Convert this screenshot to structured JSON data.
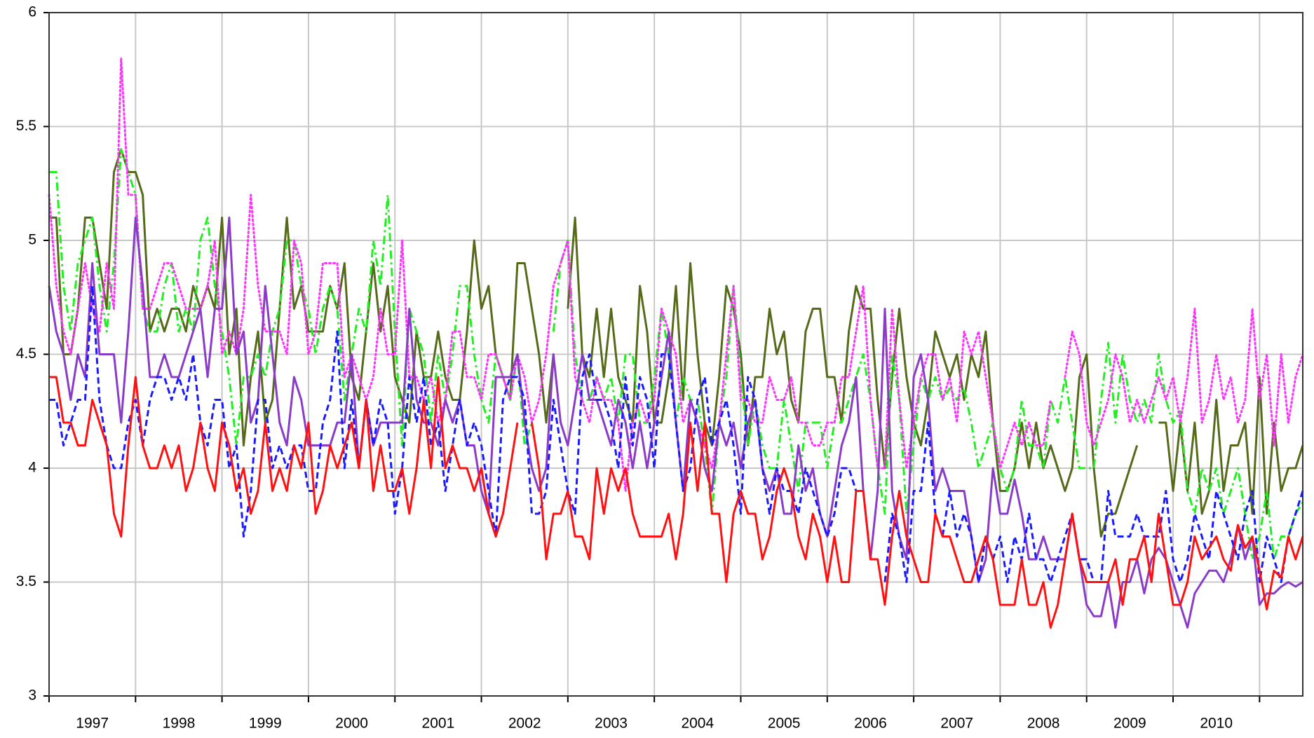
{
  "chart_data": {
    "type": "line",
    "xlim": [
      1997,
      2011.5
    ],
    "xticks": [
      {
        "value": 1997,
        "label": "1997"
      },
      {
        "value": 1998,
        "label": "1998"
      },
      {
        "value": 1999,
        "label": "1999"
      },
      {
        "value": 2000,
        "label": "2000"
      },
      {
        "value": 2001,
        "label": "2001"
      },
      {
        "value": 2002,
        "label": "2002"
      },
      {
        "value": 2003,
        "label": "2003"
      },
      {
        "value": 2004,
        "label": "2004"
      },
      {
        "value": 2005,
        "label": "2005"
      },
      {
        "value": 2006,
        "label": "2006"
      },
      {
        "value": 2007,
        "label": "2007"
      },
      {
        "value": 2008,
        "label": "2008"
      },
      {
        "value": 2009,
        "label": "2009"
      },
      {
        "value": 2010,
        "label": "2010"
      }
    ],
    "ylim": [
      3,
      6
    ],
    "yticks": [
      3,
      3.5,
      4,
      4.5,
      5,
      5.5,
      6
    ],
    "grid": true,
    "series": [
      {
        "color": "#556b1a",
        "style": "solid",
        "values": [
          5.1,
          5.1,
          4.5,
          4.5,
          4.7,
          5.1,
          5.1,
          4.9,
          4.7,
          5.3,
          5.4,
          5.3,
          5.3,
          5.2,
          4.6,
          4.7,
          4.6,
          4.7,
          4.7,
          4.6,
          4.8,
          4.7,
          4.8,
          4.7,
          5.1,
          4.5,
          4.7,
          4.1,
          4.4,
          4.6,
          4.2,
          4.3,
          4.7,
          5.1,
          4.7,
          4.8,
          4.6,
          4.6,
          4.6,
          4.8,
          4.7,
          4.9,
          4.4,
          4.3,
          4.6,
          4.9,
          4.6,
          4.8,
          4.4,
          4.3,
          4.2,
          4.6,
          4.4,
          4.4,
          4.6,
          4.4,
          4.3,
          4.3,
          4.6,
          5.0,
          4.7,
          4.8,
          4.5,
          4.4,
          4.3,
          4.9,
          4.9,
          4.7,
          4.5,
          4.2,
          4.5,
          null,
          4.7,
          5.1,
          4.5,
          4.4,
          4.7,
          4.4,
          4.7,
          4.4,
          4.3,
          4.2,
          4.8,
          4.6,
          4.2,
          4.2,
          4.4,
          4.8,
          4.3,
          4.9,
          4.5,
          4.2,
          4.1,
          4.4,
          4.8,
          4.7,
          4.5,
          4.1,
          4.4,
          4.4,
          4.7,
          4.5,
          4.6,
          4.3,
          4.2,
          4.6,
          4.7,
          4.7,
          4.4,
          4.4,
          4.2,
          4.6,
          4.8,
          4.7,
          4.7,
          4.3,
          4.0,
          4.4,
          4.7,
          4.4,
          4.2,
          4.1,
          4.3,
          4.6,
          4.5,
          4.4,
          4.5,
          4.3,
          4.5,
          4.4,
          4.6,
          4.2,
          3.9,
          3.9,
          4.0,
          4.2,
          4.0,
          4.2,
          4.0,
          4.1,
          4.0,
          3.9,
          4.0,
          4.4,
          4.5,
          4.0,
          3.7,
          3.8,
          3.8,
          3.9,
          4.0,
          4.1,
          null,
          null,
          4.2,
          4.2,
          3.9,
          4.2,
          3.9,
          4.2,
          3.8,
          3.9,
          4.3,
          3.9,
          4.1,
          4.1,
          4.2,
          3.8,
          4.4,
          3.8,
          4.2,
          3.9,
          4.0,
          4.0,
          4.1
        ]
      },
      {
        "color": "#22ee22",
        "style": "dashdot",
        "values": [
          5.3,
          5.3,
          4.8,
          4.6,
          4.9,
          5.0,
          5.1,
          4.8,
          4.6,
          4.9,
          5.4,
          5.3,
          5.2,
          4.7,
          4.6,
          4.6,
          4.8,
          4.9,
          4.6,
          4.7,
          4.6,
          5.0,
          5.1,
          4.8,
          4.6,
          4.4,
          4.1,
          4.4,
          4.4,
          4.5,
          4.4,
          4.6,
          4.7,
          5.0,
          5.0,
          4.8,
          4.7,
          4.5,
          4.7,
          4.8,
          4.7,
          4.3,
          4.5,
          4.7,
          4.6,
          5.0,
          4.8,
          5.2,
          4.6,
          4.1,
          4.7,
          4.6,
          4.5,
          4.2,
          4.5,
          4.3,
          4.5,
          4.8,
          4.8,
          4.5,
          4.3,
          4.2,
          4.5,
          4.4,
          4.3,
          4.5,
          4.1,
          4.2,
          null,
          null,
          4.6,
          4.9,
          5.0,
          4.5,
          4.3,
          4.3,
          4.4,
          4.3,
          4.4,
          4.2,
          4.5,
          4.5,
          4.2,
          4.2,
          4.4,
          4.7,
          4.5,
          4.2,
          4.4,
          4.3,
          4.3,
          4.1,
          3.8,
          4.2,
          4.4,
          4.8,
          4.4,
          4.1,
          4.3,
          4.1,
          4.0,
          4.0,
          4.3,
          4.1,
          3.9,
          4.2,
          4.2,
          4.2,
          4.0,
          4.2,
          4.2,
          4.3,
          4.4,
          4.5,
          4.3,
          4.0,
          3.8,
          4.5,
          4.3,
          3.8,
          4.1,
          4.4,
          4.3,
          4.4,
          4.3,
          4.35,
          4.3,
          4.35,
          4.2,
          4.0,
          4.1,
          4.2,
          4.0,
          3.9,
          4.0,
          4.3,
          4.1,
          4.1,
          4.0,
          4.3,
          4.2,
          4.4,
          4.2,
          4.0,
          4.0,
          4.0,
          4.3,
          4.55,
          4.2,
          4.5,
          4.3,
          4.2,
          4.3,
          4.2,
          4.5,
          4.3,
          4.2,
          4.25,
          3.9,
          3.8,
          4.0,
          3.9,
          4.0,
          3.8,
          3.9,
          4.0,
          3.8,
          3.6,
          3.7,
          3.9,
          3.6,
          3.7,
          3.7,
          3.8,
          3.85
        ]
      },
      {
        "color": "#ff33ff",
        "style": "dotted",
        "values": [
          5.2,
          4.8,
          4.6,
          4.5,
          4.7,
          4.9,
          4.7,
          4.6,
          4.9,
          4.7,
          5.8,
          5.2,
          5.2,
          4.7,
          4.7,
          4.8,
          4.9,
          4.9,
          4.8,
          4.7,
          4.7,
          4.7,
          4.8,
          5.0,
          4.5,
          4.6,
          4.5,
          4.7,
          5.2,
          4.8,
          4.6,
          4.6,
          4.6,
          4.5,
          5.0,
          4.9,
          4.5,
          4.6,
          4.9,
          4.9,
          4.9,
          4.4,
          4.5,
          4.4,
          4.3,
          4.4,
          4.7,
          4.5,
          4.5,
          5.0,
          4.4,
          4.4,
          4.3,
          4.4,
          4.2,
          4.3,
          4.6,
          4.6,
          4.4,
          4.4,
          4.3,
          4.5,
          4.5,
          4.4,
          4.3,
          4.5,
          4.4,
          4.2,
          4.3,
          4.5,
          4.8,
          4.9,
          5.0,
          4.4,
          4.3,
          4.2,
          4.4,
          4.3,
          4.3,
          4.2,
          3.9,
          4.2,
          4.3,
          4.2,
          4.3,
          4.7,
          4.6,
          4.5,
          4.2,
          4.3,
          4.2,
          4.1,
          4.0,
          4.2,
          4.5,
          4.8,
          4.3,
          4.3,
          4.2,
          4.2,
          4.4,
          4.3,
          4.3,
          4.4,
          4.2,
          4.2,
          4.1,
          4.1,
          4.2,
          4.2,
          4.4,
          4.4,
          4.6,
          4.8,
          4.3,
          4.0,
          4.0,
          4.7,
          4.3,
          4.0,
          4.2,
          4.4,
          4.5,
          4.5,
          4.3,
          4.4,
          4.2,
          4.6,
          4.5,
          4.6,
          4.4,
          4.2,
          4.0,
          4.1,
          4.2,
          4.1,
          4.2,
          4.1,
          4.1,
          4.3,
          null,
          4.4,
          4.6,
          4.5,
          4.2,
          4.1,
          4.2,
          4.3,
          4.5,
          4.4,
          4.2,
          4.3,
          4.2,
          4.3,
          4.4,
          4.3,
          4.4,
          4.2,
          4.4,
          4.7,
          4.2,
          4.3,
          4.5,
          4.3,
          4.4,
          4.2,
          4.3,
          4.7,
          4.3,
          4.5,
          4.1,
          4.5,
          4.2,
          4.4,
          4.5
        ]
      },
      {
        "color": "#8a3cc8",
        "style": "solid",
        "values": [
          4.8,
          4.6,
          4.5,
          4.3,
          4.5,
          4.4,
          4.9,
          4.5,
          4.5,
          4.5,
          4.2,
          4.6,
          5.1,
          4.8,
          4.4,
          4.4,
          4.5,
          4.4,
          4.4,
          4.5,
          4.6,
          4.7,
          4.4,
          4.7,
          4.7,
          5.1,
          4.5,
          4.6,
          4.2,
          4.3,
          4.8,
          4.5,
          4.2,
          4.1,
          4.4,
          4.3,
          4.1,
          4.1,
          4.1,
          4.1,
          4.2,
          4.2,
          4.5,
          4.0,
          4.3,
          4.1,
          4.2,
          4.2,
          4.2,
          4.2,
          4.7,
          4.3,
          4.2,
          4.2,
          4.1,
          4.3,
          4.2,
          4.3,
          4.1,
          4.1,
          3.9,
          3.8,
          4.4,
          4.4,
          4.4,
          4.5,
          4.2,
          4.0,
          3.9,
          4.0,
          4.5,
          4.2,
          4.1,
          4.3,
          4.5,
          4.3,
          4.3,
          4.2,
          4.1,
          4.3,
          4.2,
          4.0,
          4.2,
          4.0,
          4.2,
          4.4,
          4.6,
          4.2,
          3.9,
          4.3,
          4.2,
          4.0,
          3.9,
          4.2,
          4.1,
          4.2,
          4.0,
          4.2,
          4.3,
          4.0,
          3.9,
          4.0,
          3.8,
          3.8,
          4.1,
          3.9,
          4.0,
          3.8,
          3.7,
          3.9,
          4.1,
          4.2,
          4.4,
          3.9,
          3.6,
          3.9,
          4.7,
          3.9,
          3.7,
          3.6,
          4.4,
          4.5,
          4.3,
          3.9,
          4.0,
          3.9,
          3.9,
          3.9,
          3.7,
          3.5,
          3.6,
          4.0,
          3.8,
          3.8,
          3.95,
          3.8,
          3.6,
          3.6,
          3.7,
          3.6,
          3.6,
          3.6,
          3.8,
          3.6,
          3.4,
          3.35,
          3.35,
          3.5,
          3.3,
          3.5,
          3.5,
          3.6,
          3.45,
          3.6,
          3.65,
          3.6,
          3.5,
          3.4,
          3.3,
          3.45,
          3.5,
          3.55,
          3.55,
          3.5,
          3.6,
          3.75,
          3.6,
          3.7,
          3.4,
          3.45,
          3.45,
          3.48,
          3.5,
          3.48,
          3.5
        ]
      },
      {
        "color": "#1a1aff",
        "style": "dashed",
        "values": [
          4.3,
          4.3,
          4.1,
          4.2,
          4.3,
          4.3,
          4.8,
          4.3,
          4.1,
          4.0,
          4.0,
          4.2,
          4.3,
          4.1,
          4.3,
          4.4,
          4.4,
          4.3,
          4.4,
          4.3,
          4.5,
          4.2,
          4.1,
          4.3,
          4.3,
          4.0,
          4.1,
          3.7,
          3.9,
          4.3,
          4.3,
          4.0,
          4.1,
          4.0,
          4.1,
          4.1,
          3.9,
          3.9,
          4.2,
          4.3,
          4.6,
          4.0,
          4.3,
          4.0,
          4.3,
          4.1,
          4.3,
          4.2,
          3.8,
          4.0,
          4.4,
          4.2,
          4.4,
          4.1,
          4.2,
          3.9,
          4.1,
          4.3,
          4.1,
          4.2,
          4.1,
          3.9,
          3.7,
          4.3,
          4.4,
          4.4,
          4.3,
          3.8,
          3.8,
          3.9,
          4.3,
          4.1,
          3.9,
          3.8,
          4.4,
          4.5,
          4.3,
          4.3,
          4.2,
          4.0,
          4.4,
          4.1,
          4.4,
          4.3,
          4.0,
          4.5,
          4.5,
          4.2,
          3.9,
          4.0,
          4.3,
          4.4,
          4.1,
          4.2,
          4.3,
          4.1,
          3.8,
          4.4,
          4.3,
          4.0,
          3.8,
          4.0,
          3.9,
          3.9,
          3.8,
          4.0,
          3.9,
          3.8,
          3.7,
          3.8,
          4.0,
          4.0,
          3.9,
          null,
          null,
          null,
          3.5,
          3.8,
          3.7,
          3.5,
          3.9,
          3.9,
          4.2,
          3.8,
          3.7,
          3.9,
          3.7,
          3.8,
          3.7,
          3.5,
          3.7,
          3.6,
          3.7,
          3.5,
          3.7,
          3.6,
          3.8,
          3.6,
          3.6,
          3.5,
          3.6,
          3.7,
          3.8,
          3.6,
          3.6,
          3.5,
          3.5,
          3.9,
          3.7,
          3.7,
          3.7,
          3.8,
          3.7,
          3.7,
          3.7,
          3.9,
          3.6,
          3.5,
          3.6,
          3.8,
          3.7,
          3.6,
          3.9,
          3.8,
          3.7,
          3.6,
          3.8,
          3.9,
          3.5,
          3.7,
          3.6,
          3.5,
          3.7,
          3.8,
          3.9
        ]
      },
      {
        "color": "#ff1111",
        "style": "solid",
        "values": [
          4.4,
          4.4,
          4.2,
          4.2,
          4.1,
          4.1,
          4.3,
          4.2,
          4.1,
          3.8,
          3.7,
          4.1,
          4.4,
          4.1,
          4.0,
          4.0,
          4.1,
          4.0,
          4.1,
          3.9,
          4.0,
          4.2,
          4.0,
          3.9,
          4.2,
          4.1,
          3.9,
          4.0,
          3.8,
          3.9,
          4.2,
          3.9,
          4.0,
          3.9,
          4.1,
          4.0,
          4.2,
          3.8,
          3.9,
          4.1,
          4.0,
          4.1,
          4.2,
          4.0,
          4.3,
          3.9,
          4.1,
          3.9,
          3.9,
          4.0,
          3.8,
          4.0,
          4.3,
          4.0,
          4.4,
          4.0,
          4.1,
          4.0,
          4.0,
          3.9,
          4.0,
          3.8,
          3.7,
          3.8,
          4.0,
          4.2,
          null,
          4.2,
          4.0,
          3.6,
          3.8,
          3.8,
          3.9,
          3.7,
          3.7,
          3.6,
          4.0,
          3.8,
          4.0,
          3.9,
          4.0,
          3.8,
          3.7,
          3.7,
          3.7,
          3.7,
          3.8,
          3.6,
          3.8,
          4.2,
          3.9,
          4.2,
          3.8,
          3.8,
          3.5,
          3.8,
          3.9,
          3.8,
          3.8,
          3.6,
          3.7,
          3.9,
          4.0,
          3.9,
          3.7,
          3.6,
          3.8,
          3.7,
          3.5,
          3.7,
          3.5,
          3.5,
          3.9,
          3.9,
          3.6,
          3.6,
          3.4,
          3.7,
          3.9,
          3.7,
          3.6,
          3.5,
          3.5,
          3.8,
          3.7,
          3.7,
          3.6,
          3.5,
          3.5,
          3.6,
          3.7,
          3.6,
          3.4,
          3.4,
          3.4,
          3.6,
          3.4,
          3.4,
          3.5,
          3.3,
          3.4,
          3.6,
          3.8,
          3.6,
          3.5,
          3.5,
          3.5,
          3.5,
          3.6,
          3.4,
          3.6,
          3.6,
          3.7,
          3.5,
          3.8,
          3.6,
          3.4,
          3.4,
          3.5,
          3.7,
          3.6,
          3.65,
          3.7,
          3.6,
          3.55,
          3.75,
          3.65,
          3.7,
          3.55,
          3.38,
          3.55,
          3.52,
          3.7,
          3.6,
          3.7
        ]
      }
    ]
  }
}
